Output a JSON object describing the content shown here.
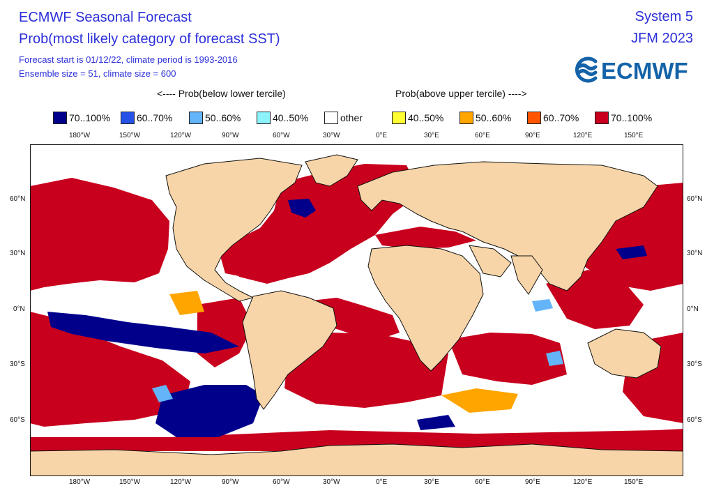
{
  "header": {
    "title": "ECMWF Seasonal Forecast",
    "subtitle": "Prob(most likely category of forecast SST)",
    "info_line1": "Forecast start is 01/12/22, climate period is 1993-2016",
    "info_line2": "Ensemble size = 51, climate size = 600",
    "system": "System 5",
    "period": "JFM 2023",
    "logo_text": "ECMWF"
  },
  "legend": {
    "below_label": "<---- Prob(below lower tercile)",
    "above_label": "Prob(above upper tercile) ---->",
    "items": [
      {
        "label": "70..100%",
        "color": "#00008b"
      },
      {
        "label": "60..70%",
        "color": "#2652e8"
      },
      {
        "label": "50..60%",
        "color": "#63b4f8"
      },
      {
        "label": "40..50%",
        "color": "#8cf2fc"
      },
      {
        "label": "other",
        "color": "#ffffff"
      },
      {
        "label": "40..50%",
        "color": "#ffff33"
      },
      {
        "label": "50..60%",
        "color": "#ffa500"
      },
      {
        "label": "60..70%",
        "color": "#ff5500"
      },
      {
        "label": "70..100%",
        "color": "#c8001e"
      }
    ]
  },
  "map": {
    "projection": "equirectangular",
    "lon_ticks": [
      "180°W",
      "150°W",
      "120°W",
      "90°W",
      "60°W",
      "30°W",
      "0°E",
      "30°E",
      "60°E",
      "90°E",
      "120°E",
      "150°E"
    ],
    "lat_ticks": [
      "60°N",
      "30°N",
      "0°N",
      "30°S",
      "60°S"
    ],
    "land_color": "#f8d5a8",
    "ocean_default_color": "#ffffff"
  }
}
